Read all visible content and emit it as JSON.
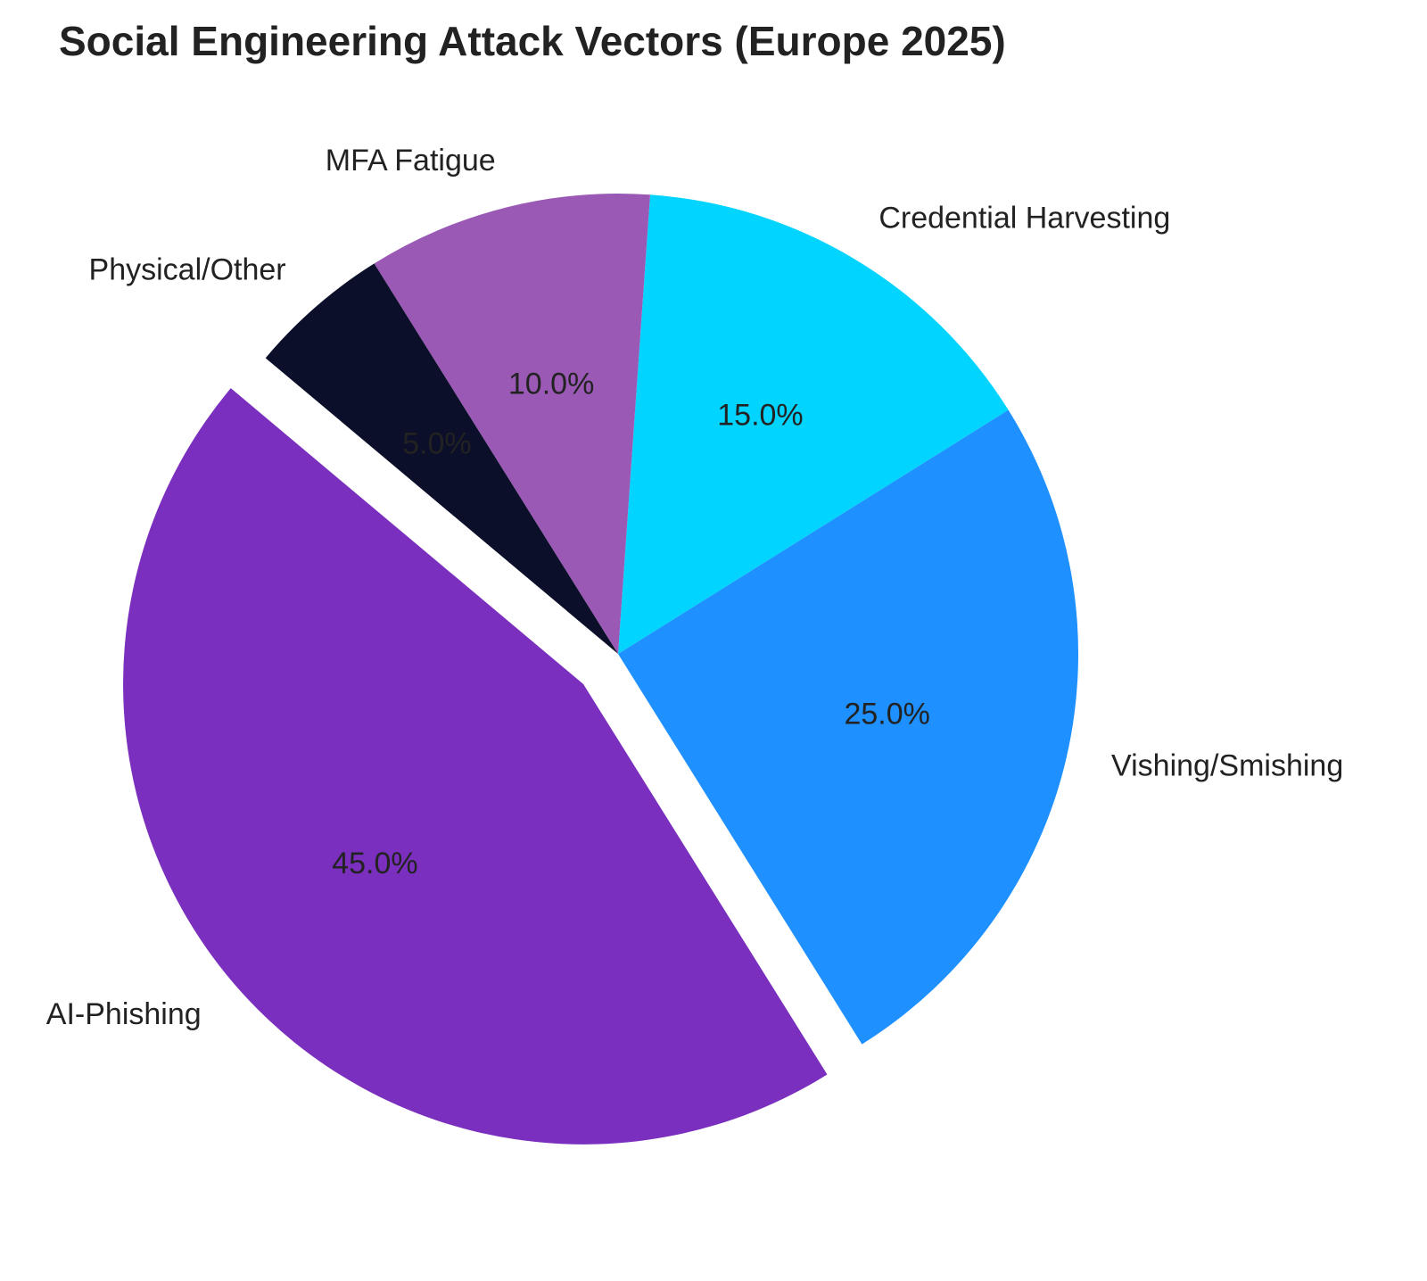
{
  "chart_data": {
    "type": "pie",
    "title": "Social Engineering Attack Vectors (Europe 2025)",
    "categories": [
      "AI-Phishing",
      "Vishing/Smishing",
      "Credential Harvesting",
      "MFA Fatigue",
      "Physical/Other"
    ],
    "values": [
      45,
      25,
      15,
      10,
      5
    ],
    "value_labels": [
      "45.0%",
      "25.0%",
      "15.0%",
      "10.0%",
      "5.0%"
    ],
    "colors": [
      "#7b2fbe",
      "#1e90ff",
      "#00d4ff",
      "#9b59b6",
      "#0b0f29"
    ],
    "explode": [
      0.1,
      0,
      0,
      0,
      0
    ]
  }
}
